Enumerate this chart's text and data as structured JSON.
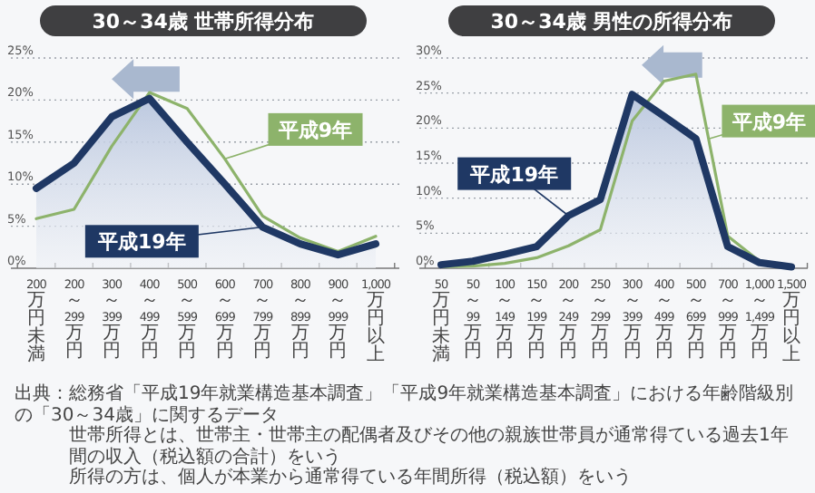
{
  "chart_data": [
    {
      "type": "line",
      "title": "30～34歳 世帯所得分布",
      "categories": [
        "200万円未満",
        "200～299万円",
        "300～399万円",
        "400～499万円",
        "500～599万円",
        "600～699万円",
        "700～799万円",
        "800～899万円",
        "900～999万円",
        "1,000万円以上"
      ],
      "series": [
        {
          "name": "平成19年",
          "type": "area",
          "color": "#1f3864",
          "values": [
            9.5,
            12.5,
            18,
            20.2,
            15,
            10,
            4.9,
            2.9,
            1.6,
            2.9
          ]
        },
        {
          "name": "平成9年",
          "color": "#8db36b",
          "values": [
            5.9,
            7,
            14.5,
            20.9,
            19,
            13,
            6.2,
            3.6,
            2,
            3.8
          ]
        }
      ],
      "ylim": [
        0,
        25
      ],
      "yticks": [
        {
          "value": 0,
          "label": "0%"
        },
        {
          "value": 5,
          "label": "5%"
        },
        {
          "value": 10,
          "label": "10%"
        },
        {
          "value": 15,
          "label": "15%"
        },
        {
          "value": 20,
          "label": "20%"
        },
        {
          "value": 25,
          "label": "25%"
        }
      ],
      "grid": "y",
      "annotations": [
        "出典：総務省「平成19年就業構造基本調査」「平成9年就業構造基本調査」における年齢階級別の「30～34歳」に関するデータ",
        "世帯所得とは、世帯主・世帯主の配偶者及びその他の親族世帯員が通常得ている過去1年間の収入（税込額の合計）をいう",
        "所得の方は、個人が本業から通常得ている年間所得（税込額）をいう"
      ]
    },
    {
      "type": "line",
      "title": "30～34歳 男性の所得分布",
      "categories": [
        "50万円未満",
        "50～99万円",
        "100～149万円",
        "150～199万円",
        "200～249万円",
        "250～299万円",
        "300～399万円",
        "400～499万円",
        "500～699万円",
        "700～999万円",
        "1,000～1,499万円",
        "1,500万円以上"
      ],
      "series": [
        {
          "name": "平成19年",
          "type": "area",
          "color": "#1f3864",
          "values": [
            0.5,
            1,
            2,
            3.1,
            7.5,
            9.8,
            24.8,
            21.7,
            18.5,
            3.1,
            0.8,
            0.2
          ]
        },
        {
          "name": "平成9年",
          "color": "#8db36b",
          "values": [
            0.2,
            0.3,
            0.7,
            1.5,
            3.2,
            5.5,
            21,
            26.7,
            27.7,
            4.6,
            1,
            0.3
          ]
        }
      ],
      "ylim": [
        0,
        30
      ],
      "yticks": [
        {
          "value": 0,
          "label": "0%"
        },
        {
          "value": 5,
          "label": "5%"
        },
        {
          "value": 10,
          "label": "10%"
        },
        {
          "value": 15,
          "label": "15%"
        },
        {
          "value": 20,
          "label": "20%"
        },
        {
          "value": 25,
          "label": "25%"
        },
        {
          "value": 30,
          "label": "30%"
        }
      ],
      "grid": "y"
    }
  ]
}
